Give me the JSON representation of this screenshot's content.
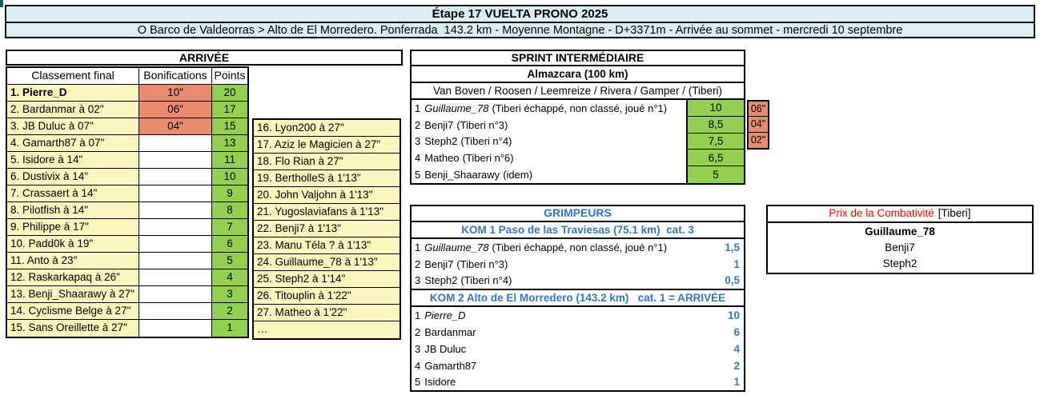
{
  "colors": {
    "header_bg": "#DAEEF3",
    "yellow": "#FAF6BE",
    "green": "#92D050",
    "salmon": "#E98C6F",
    "blue": "#3575C4",
    "red": "#FF0000"
  },
  "header": {
    "title": "Étape 17 VUELTA PRONO 2025",
    "subtitle": "O Barco de Valdeorras > Alto de El Morredero. Ponferrada  143.2 km - Moyenne Montagne - D+3371m - Arrivée au sommet - mercredi 10 septembre"
  },
  "arrivee": {
    "section_title": "ARRIVÉE",
    "columns": [
      "Classement final",
      "Bonifications",
      "Points"
    ],
    "rows": [
      {
        "name": "1. Pierre_D",
        "bold": true,
        "bonification": "10\"",
        "points": "20"
      },
      {
        "name": "2. Bardanmar à 02\"",
        "bonification": "06\"",
        "points": "17"
      },
      {
        "name": "3. JB Duluc à 07\"",
        "bonification": "04\"",
        "points": "15"
      },
      {
        "name": "4. Gamarth87 à 07\"",
        "points": "13"
      },
      {
        "name": "5. Isidore à 14\"",
        "points": "11"
      },
      {
        "name": "6. Dustivix à 14\"",
        "points": "10"
      },
      {
        "name": "7. Crassaert à 14\"",
        "points": "9"
      },
      {
        "name": "8. Pilotfish à 14\"",
        "points": "8"
      },
      {
        "name": "9. Philippe à 17\"",
        "points": "7"
      },
      {
        "name": "10. Padd0k à 19\"",
        "points": "6"
      },
      {
        "name": "11. Anto à 23\"",
        "points": "5"
      },
      {
        "name": "12. Raskarkapaq à 26\"",
        "points": "4"
      },
      {
        "name": "13. Benji_Shaarawy à 27\"",
        "points": "3"
      },
      {
        "name": "14. Cyclisme Belge à 27\"",
        "points": "2"
      },
      {
        "name": "15. Sans Oreillette à 27\"",
        "points": "1"
      }
    ],
    "overflow_rows": [
      "16. Lyon200 à 27\"",
      "17. Aziz le Magicien à 27\"",
      "18. Flo Rian à 27\"",
      "19. BertholleS à 1'13\"",
      "20. John Valjohn à 1'13\"",
      "21. Yugoslaviafans à 1'13\"",
      "22. Benji7 à 1'13\"",
      "23. Manu Téla ? à 1'13\"",
      "24. Guillaume_78 à 1'13\"",
      "25. Steph2 à 1'14\"",
      "26. Titouplin à 1'22\"",
      "27. Matheo à 1'22\"",
      "…"
    ]
  },
  "sprint": {
    "section_title": "SPRINT INTERMÉDIAIRE",
    "location": "Almazcara (100 km)",
    "riders_line": "Van Boven / Roosen / Leemreize / Rivera / Gamper / (Tiberi)",
    "rows": [
      {
        "rank": "1",
        "name": "Guillaume_78",
        "italic": true,
        "note": "(Tiberi échappé, non classé, joué n°1)",
        "points": "10",
        "bonification": "06\""
      },
      {
        "rank": "2",
        "name": "Benji7",
        "note": "(Tiberi n°3)",
        "points": "8,5",
        "bonification": "04\""
      },
      {
        "rank": "3",
        "name": "Steph2",
        "note": "(Tiberi n°4)",
        "points": "7,5",
        "bonification": "02\""
      },
      {
        "rank": "4",
        "name": "Matheo",
        "note": "(Tiberi n°6)",
        "points": "6,5"
      },
      {
        "rank": "5",
        "name": "Benji_Shaarawy",
        "note": "(idem)",
        "points": "5"
      }
    ]
  },
  "grimpeurs": {
    "section_title": "GRIMPEURS",
    "kom1": {
      "title": "KOM 1 Paso de las Traviesas (75.1 km)  cat. 3",
      "rows": [
        {
          "rank": "1",
          "name": "Guillaume_78",
          "italic": true,
          "note": "(Tiberi échappé, non classé, joué n°1)",
          "points": "1,5"
        },
        {
          "rank": "2",
          "name": "Benji7",
          "note": "(Tiberi n°3)",
          "points": "1"
        },
        {
          "rank": "3",
          "name": "Steph2",
          "note": "(Tiberi n°4)",
          "points": "0,5"
        }
      ]
    },
    "kom2": {
      "title": "KOM 2 Alto de El Morredero (143.2 km)   cat. 1 = ARRIVÉE",
      "rows": [
        {
          "rank": "1",
          "name": "Pierre_D",
          "italic": true,
          "note": "",
          "points": "10"
        },
        {
          "rank": "2",
          "name": "Bardanmar",
          "note": "",
          "points": "6"
        },
        {
          "rank": "3",
          "name": "JB Duluc",
          "note": "",
          "points": "4"
        },
        {
          "rank": "4",
          "name": "Gamarth87",
          "note": "",
          "points": "2"
        },
        {
          "rank": "5",
          "name": "Isidore",
          "note": "",
          "points": "1"
        }
      ]
    }
  },
  "combativite": {
    "title": "Prix de la Combativité",
    "holder": "[Tiberi]",
    "names": [
      {
        "name": "Guillaume_78",
        "bold": true
      },
      {
        "name": "Benji7"
      },
      {
        "name": "Steph2"
      }
    ]
  }
}
